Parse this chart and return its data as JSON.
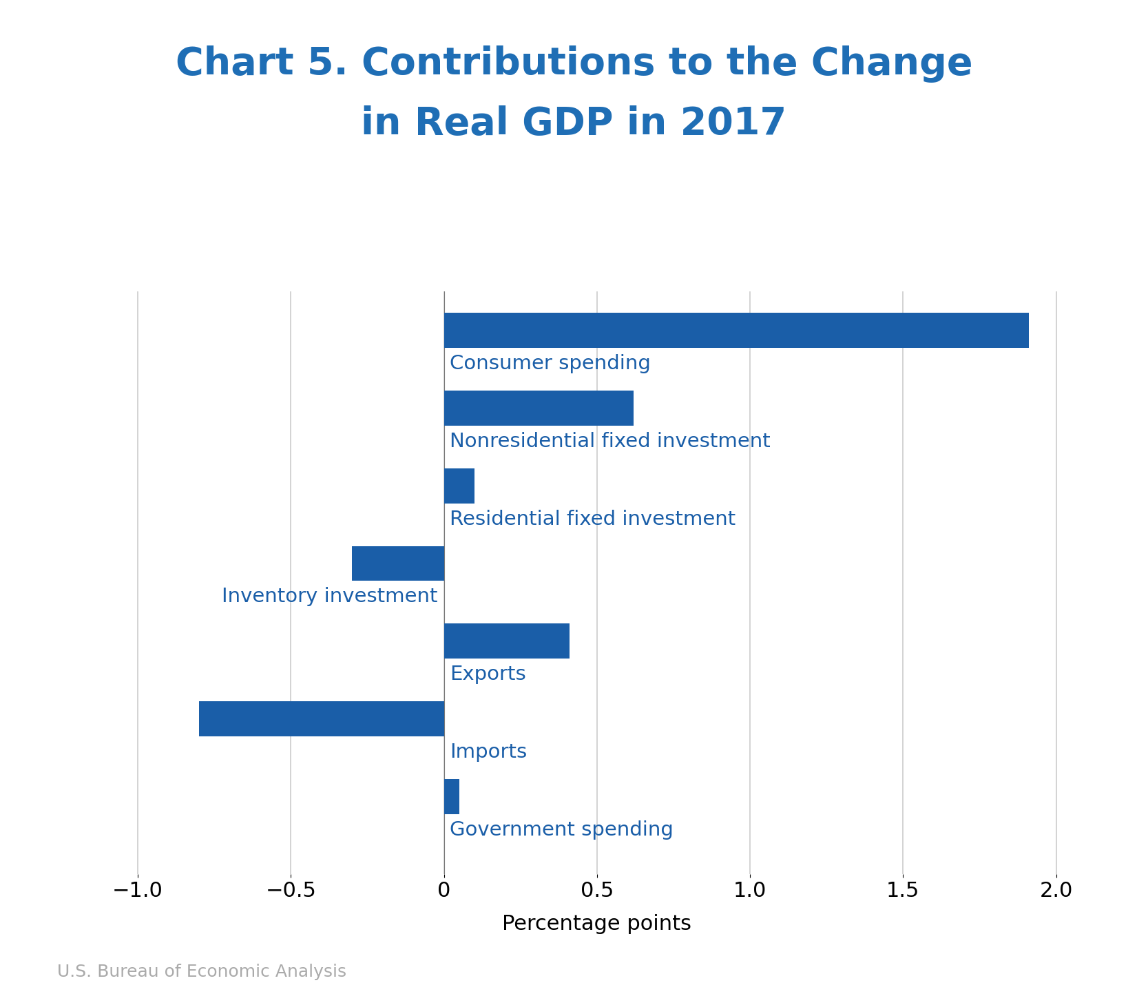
{
  "title_line1": "Chart 5. Contributions to the Change",
  "title_line2": "in Real GDP in 2017",
  "title_color": "#1F6EB5",
  "title_fontsize": 40,
  "categories": [
    "Consumer spending",
    "Nonresidential fixed investment",
    "Residential fixed investment",
    "Inventory investment",
    "Exports",
    "Imports",
    "Government spending"
  ],
  "values": [
    1.91,
    0.62,
    0.1,
    -0.3,
    0.41,
    -0.8,
    0.05
  ],
  "bar_color": "#1A5EA8",
  "xlabel": "Percentage points",
  "xlabel_fontsize": 22,
  "xlim": [
    -1.15,
    2.15
  ],
  "xticks": [
    -1.0,
    -0.5,
    0.0,
    0.5,
    1.0,
    1.5,
    2.0
  ],
  "xtick_labels": [
    "−1.0",
    "−0.5",
    "0",
    "0.5",
    "1.0",
    "1.5",
    "2.0"
  ],
  "tick_fontsize": 22,
  "label_fontsize": 21,
  "label_color": "#1A5EA8",
  "source_text": "U.S. Bureau of Economic Analysis",
  "source_fontsize": 18,
  "source_color": "#AAAAAA",
  "background_color": "#FFFFFF",
  "grid_color": "#CCCCCC",
  "bar_height": 0.45
}
